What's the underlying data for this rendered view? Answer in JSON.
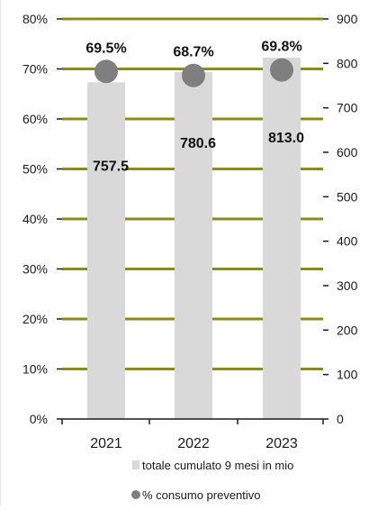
{
  "chart_data": {
    "type": "bar",
    "categories": [
      "2021",
      "2022",
      "2023"
    ],
    "series": [
      {
        "name": "totale cumulato 9 mesi in mio",
        "kind": "bar",
        "axis": "right",
        "values": [
          757.5,
          780.6,
          813.0
        ],
        "labels": [
          "757.5",
          "780.6",
          "813.0"
        ]
      },
      {
        "name": "% consumo preventivo",
        "kind": "scatter",
        "axis": "left",
        "values": [
          69.5,
          68.7,
          69.8
        ],
        "labels": [
          "69.5%",
          "68.7%",
          "69.8%"
        ]
      }
    ],
    "y_left": {
      "ylim": [
        0,
        80
      ],
      "ticks": [
        0,
        10,
        20,
        30,
        40,
        50,
        60,
        70,
        80
      ],
      "tick_labels": [
        "0%",
        "10%",
        "20%",
        "30%",
        "40%",
        "50%",
        "60%",
        "70%",
        "80%"
      ]
    },
    "y_right": {
      "ylim": [
        0,
        900
      ],
      "ticks": [
        0,
        100,
        200,
        300,
        400,
        500,
        600,
        700,
        800,
        900
      ],
      "tick_labels": [
        "0",
        "100",
        "200",
        "300",
        "400",
        "500",
        "600",
        "700",
        "800",
        "900"
      ]
    },
    "grid": true,
    "legend_position": "bottom",
    "colors": {
      "bar": "#d9d9d9",
      "marker": "#7f7f7f",
      "grid": "#8b8b1a",
      "axis": "#1a1a1a"
    }
  }
}
